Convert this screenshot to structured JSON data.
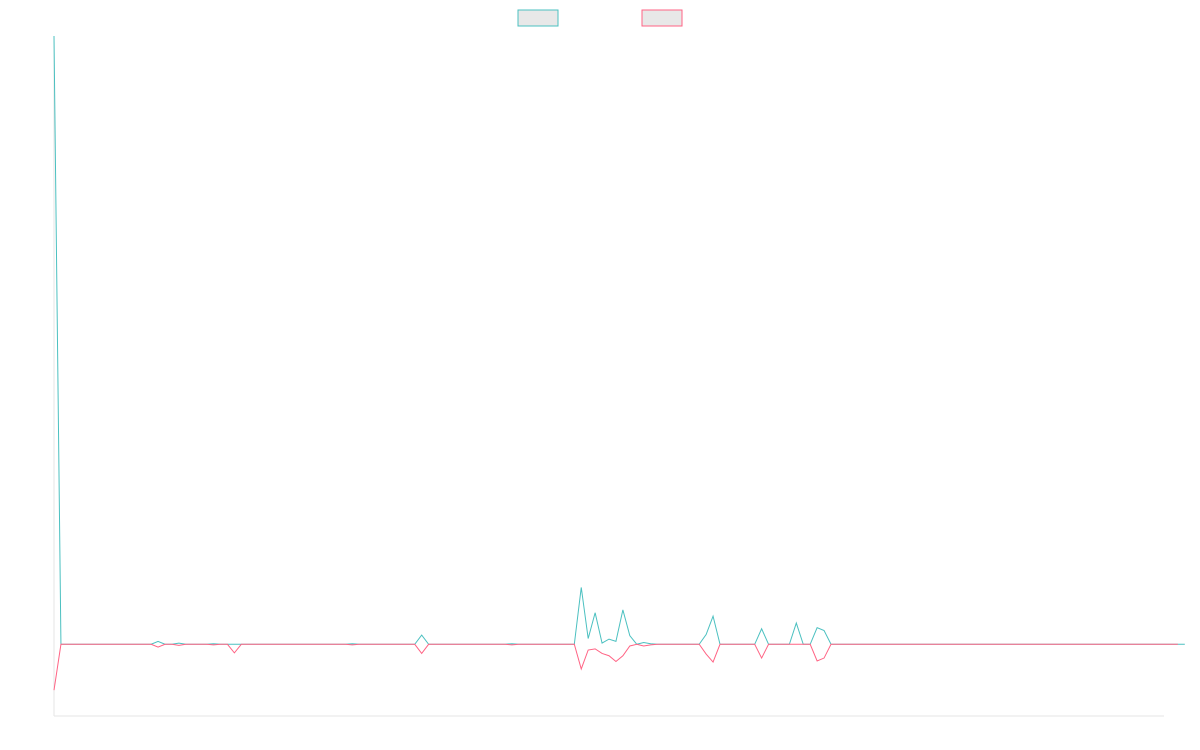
{
  "chart_data": {
    "type": "line",
    "title": "",
    "xlabel": "",
    "ylabel": "",
    "grid": false,
    "legend_position": "top-center",
    "xlim": [
      0,
      160
    ],
    "ylim": [
      -1.25,
      10.6
    ],
    "series": [
      {
        "name": "",
        "color": "#4bc0c0",
        "values": [
          10.6,
          0,
          0,
          0,
          0,
          0,
          0,
          0,
          0,
          0,
          0,
          0,
          0,
          0,
          0,
          0.05,
          0,
          0,
          0.02,
          0,
          0,
          0,
          0,
          0.01,
          0,
          0,
          0,
          0,
          0,
          0,
          0,
          0,
          0,
          0,
          0,
          0,
          0,
          0,
          0,
          0,
          0,
          0,
          0,
          0.01,
          0,
          0,
          0,
          0,
          0,
          0,
          0,
          0,
          0,
          0.16,
          0,
          0,
          0,
          0,
          0,
          0,
          0,
          0,
          0,
          0,
          0,
          0,
          0.01,
          0,
          0,
          0,
          0,
          0,
          0,
          0,
          0,
          0,
          0.99,
          0.1,
          0.55,
          0.02,
          0.09,
          0.05,
          0.6,
          0.15,
          0.0,
          0.03,
          0.01,
          0,
          0,
          0,
          0,
          0,
          0,
          0,
          0.17,
          0.49,
          0,
          0,
          0,
          0,
          0,
          0,
          0.27,
          0,
          0,
          0,
          0,
          0.37,
          0,
          0,
          0.29,
          0.24,
          0,
          0,
          0,
          0,
          0,
          0,
          0,
          0,
          0,
          0,
          0,
          0,
          0,
          0,
          0,
          0,
          0,
          0,
          0,
          0,
          0,
          0,
          0,
          0,
          0,
          0,
          0,
          0,
          0,
          0,
          0,
          0,
          0,
          0,
          0,
          0,
          0,
          0,
          0,
          0,
          0,
          0,
          0,
          0,
          0,
          0,
          0,
          0,
          0,
          0,
          0,
          0
        ]
      },
      {
        "name": "",
        "color": "#ff6384",
        "values": [
          -0.8,
          0,
          0,
          0,
          0,
          0,
          0,
          0,
          0,
          0,
          0,
          0,
          0,
          0,
          0,
          -0.05,
          0,
          0,
          -0.02,
          0,
          0,
          0,
          0,
          -0.01,
          0,
          0,
          -0.15,
          0,
          0,
          0,
          0,
          0,
          0,
          0,
          0,
          0,
          0,
          0,
          0,
          0,
          0,
          0,
          0,
          -0.01,
          0,
          0,
          0,
          0,
          0,
          0,
          0,
          0,
          0,
          -0.16,
          0,
          0,
          0,
          0,
          0,
          0,
          0,
          0,
          0,
          0,
          0,
          0,
          -0.01,
          0,
          0,
          0,
          0,
          0,
          0,
          0,
          0,
          0,
          -0.43,
          -0.1,
          -0.08,
          -0.16,
          -0.2,
          -0.3,
          -0.2,
          -0.03,
          0,
          -0.03,
          -0.01,
          0,
          0,
          0,
          0,
          0,
          0,
          0,
          -0.17,
          -0.31,
          0,
          0,
          0,
          0,
          0,
          0,
          -0.24,
          0,
          0,
          0,
          0,
          0,
          0,
          0,
          -0.29,
          -0.24,
          0,
          0,
          0,
          0,
          0,
          0,
          0,
          0,
          0,
          0,
          0,
          0,
          0,
          0,
          0,
          0,
          0,
          0,
          0,
          0,
          0,
          0,
          0,
          0,
          0,
          0,
          0,
          0,
          0,
          0,
          0,
          0,
          0,
          0,
          0,
          0,
          0,
          0,
          0,
          0,
          0,
          0,
          0,
          0,
          0,
          0,
          0,
          0,
          0,
          0,
          0
        ]
      }
    ]
  }
}
